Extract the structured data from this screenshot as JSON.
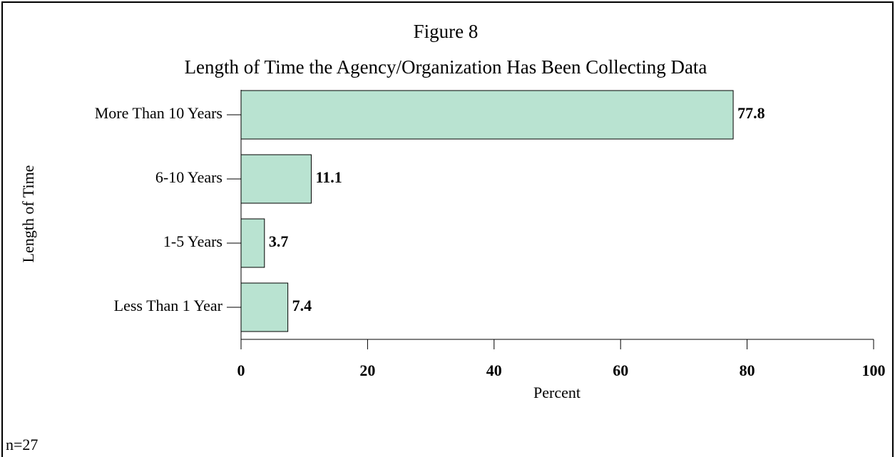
{
  "chart_data": {
    "type": "bar",
    "orientation": "horizontal",
    "title": "Figure 8",
    "subtitle": "Length of Time the Agency/Organization Has Been Collecting Data",
    "x_label": "Percent",
    "y_label": "Length of Time",
    "categories": [
      "More Than 10 Years",
      "6-10 Years",
      "1-5 Years",
      "Less Than 1 Year"
    ],
    "values": [
      77.8,
      11.1,
      3.7,
      7.4
    ],
    "color": "#b9e3d1",
    "xlim": [
      0,
      100
    ],
    "xticks": [
      0,
      20,
      40,
      60,
      80,
      100
    ],
    "note": "n=27"
  }
}
